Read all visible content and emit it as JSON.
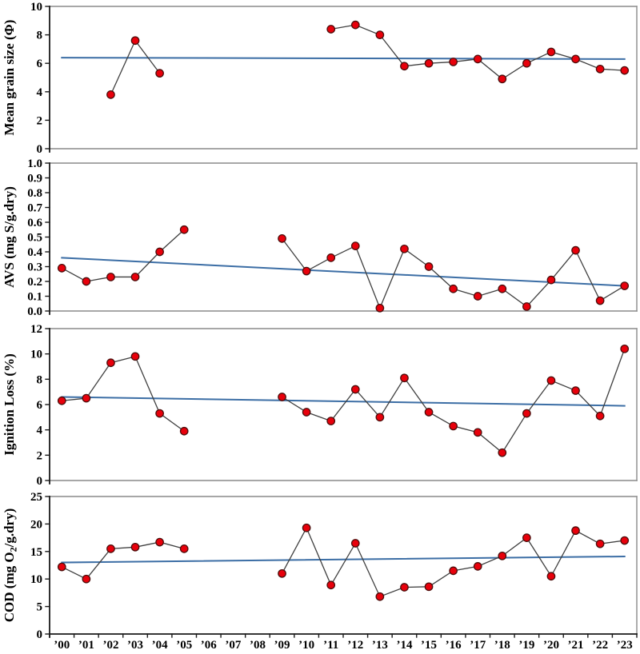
{
  "figure": {
    "background": "#ffffff",
    "colors": {
      "marker_fill": "#e8000b",
      "marker_stroke": "#4a0d0b",
      "data_line": "#3f3f3f",
      "trend_line": "#3c6ea5",
      "axis": "#1a1a1a",
      "panel_border": "#8a8a8a",
      "text": "#000000"
    }
  },
  "chart_data": {
    "type": "line",
    "grid": false,
    "legend": false,
    "marker": "red-filled-circle",
    "x_categories": [
      "’00",
      "’01",
      "’02",
      "’03",
      "’04",
      "’05",
      "’06",
      "’07",
      "’08",
      "’09",
      "’10",
      "’11",
      "’12",
      "’13",
      "’14",
      "’15",
      "’16",
      "’17",
      "’18",
      "’19",
      "’20",
      "’21",
      "’22",
      "’23"
    ],
    "panels": [
      {
        "id": "mean-grain-size",
        "ylabel": "Mean grain size (Φ)",
        "ylim": [
          0,
          10
        ],
        "yticks": [
          0,
          2,
          4,
          6,
          8,
          10
        ],
        "ytick_labels": [
          "0",
          "2",
          "4",
          "6",
          "8",
          "10"
        ],
        "values": [
          null,
          null,
          3.8,
          7.6,
          5.3,
          null,
          null,
          null,
          null,
          null,
          null,
          8.4,
          8.7,
          8.0,
          5.8,
          6.0,
          6.1,
          6.3,
          4.9,
          6.0,
          6.8,
          6.3,
          5.6,
          5.5
        ],
        "trend": {
          "start": 6.4,
          "end": 6.3
        }
      },
      {
        "id": "avs",
        "ylabel": "AVS (mg S/g.dry)",
        "ylim": [
          0,
          1.0
        ],
        "yticks": [
          0,
          0.1,
          0.2,
          0.3,
          0.4,
          0.5,
          0.6,
          0.7,
          0.8,
          0.9,
          1.0
        ],
        "ytick_labels": [
          "0.0",
          "0.1",
          "0.2",
          "0.3",
          "0.4",
          "0.5",
          "0.6",
          "0.7",
          "0.8",
          "0.9",
          "1.0"
        ],
        "values": [
          0.29,
          0.2,
          0.23,
          0.23,
          0.4,
          0.55,
          null,
          null,
          null,
          0.49,
          0.27,
          0.36,
          0.44,
          0.02,
          0.42,
          0.3,
          0.15,
          0.1,
          0.15,
          0.03,
          0.21,
          0.41,
          0.07,
          0.17
        ],
        "trend": {
          "start": 0.36,
          "end": 0.17
        }
      },
      {
        "id": "ignition-loss",
        "ylabel": "Ignition Loss (%)",
        "ylim": [
          0,
          12
        ],
        "yticks": [
          0,
          2,
          4,
          6,
          8,
          10,
          12
        ],
        "ytick_labels": [
          "0",
          "2",
          "4",
          "6",
          "8",
          "10",
          "12"
        ],
        "values": [
          6.3,
          6.5,
          9.3,
          9.8,
          5.3,
          3.9,
          null,
          null,
          null,
          6.6,
          5.4,
          4.7,
          7.2,
          5.0,
          8.1,
          5.4,
          4.3,
          3.8,
          2.2,
          5.3,
          7.9,
          7.1,
          5.1,
          10.4
        ],
        "trend": {
          "start": 6.6,
          "end": 5.9
        }
      },
      {
        "id": "cod",
        "ylabel": "COD (mg O₂/g.dry)",
        "ylim": [
          0,
          25
        ],
        "yticks": [
          0,
          5,
          10,
          15,
          20,
          25
        ],
        "ytick_labels": [
          "0",
          "5",
          "10",
          "15",
          "20",
          "25"
        ],
        "values": [
          12.2,
          10.0,
          15.5,
          15.8,
          16.7,
          15.5,
          null,
          null,
          null,
          11.0,
          19.3,
          8.9,
          16.5,
          6.8,
          8.5,
          8.6,
          11.5,
          12.3,
          14.2,
          17.5,
          10.5,
          18.8,
          16.4,
          17.0
        ],
        "trend": {
          "start": 13.0,
          "end": 14.1
        }
      }
    ]
  }
}
